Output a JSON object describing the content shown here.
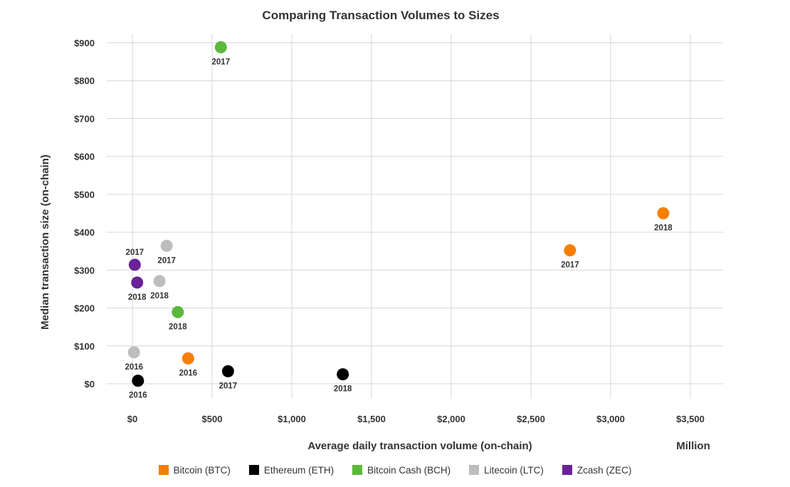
{
  "chart_data": {
    "type": "scatter",
    "title": "Comparing Transaction Volumes to Sizes",
    "xlabel": "Average daily transaction volume (on-chain)",
    "x_unit_note": "Million",
    "ylabel": "Median transaction size (on-chain)",
    "xlim": [
      -150,
      3700
    ],
    "ylim": [
      -40,
      900
    ],
    "x_ticks": [
      0,
      500,
      1000,
      1500,
      2000,
      2500,
      3000,
      3500
    ],
    "x_tick_labels": [
      "$0",
      "$500",
      "$1,000",
      "$1,500",
      "$2,000",
      "$2,500",
      "$3,000",
      "$3,500"
    ],
    "y_ticks": [
      0,
      100,
      200,
      300,
      400,
      500,
      600,
      700,
      800,
      900
    ],
    "y_tick_labels": [
      "$0",
      "$100",
      "$200",
      "$300",
      "$400",
      "$500",
      "$600",
      "$700",
      "$800",
      "$900"
    ],
    "grid": true,
    "legend_position": "bottom",
    "series": [
      {
        "name": "Bitcoin (BTC)",
        "color": "#f77f00",
        "points": [
          {
            "x": 350,
            "y": 67,
            "label": "2016",
            "label_pos": "below"
          },
          {
            "x": 2745,
            "y": 352,
            "label": "2017",
            "label_pos": "below"
          },
          {
            "x": 3330,
            "y": 450,
            "label": "2018",
            "label_pos": "below"
          }
        ]
      },
      {
        "name": "Ethereum (ETH)",
        "color": "#000000",
        "points": [
          {
            "x": 35,
            "y": 8,
            "label": "2016",
            "label_pos": "below"
          },
          {
            "x": 600,
            "y": 33,
            "label": "2017",
            "label_pos": "below"
          },
          {
            "x": 1320,
            "y": 25,
            "label": "2018",
            "label_pos": "below"
          }
        ]
      },
      {
        "name": "Bitcoin Cash (BCH)",
        "color": "#5cb83a",
        "points": [
          {
            "x": 555,
            "y": 888,
            "label": "2017",
            "label_pos": "below"
          },
          {
            "x": 285,
            "y": 189,
            "label": "2018",
            "label_pos": "below"
          }
        ]
      },
      {
        "name": "Litecoin (LTC)",
        "color": "#bdbdbd",
        "points": [
          {
            "x": 10,
            "y": 83,
            "label": "2016",
            "label_pos": "below"
          },
          {
            "x": 215,
            "y": 364,
            "label": "2017",
            "label_pos": "below"
          },
          {
            "x": 170,
            "y": 271,
            "label": "2018",
            "label_pos": "below"
          }
        ]
      },
      {
        "name": "Zcash (ZEC)",
        "color": "#6a2296",
        "points": [
          {
            "x": 15,
            "y": 314,
            "label": "2017",
            "label_pos": "above"
          },
          {
            "x": 30,
            "y": 267,
            "label": "2018",
            "label_pos": "below"
          }
        ]
      }
    ]
  }
}
